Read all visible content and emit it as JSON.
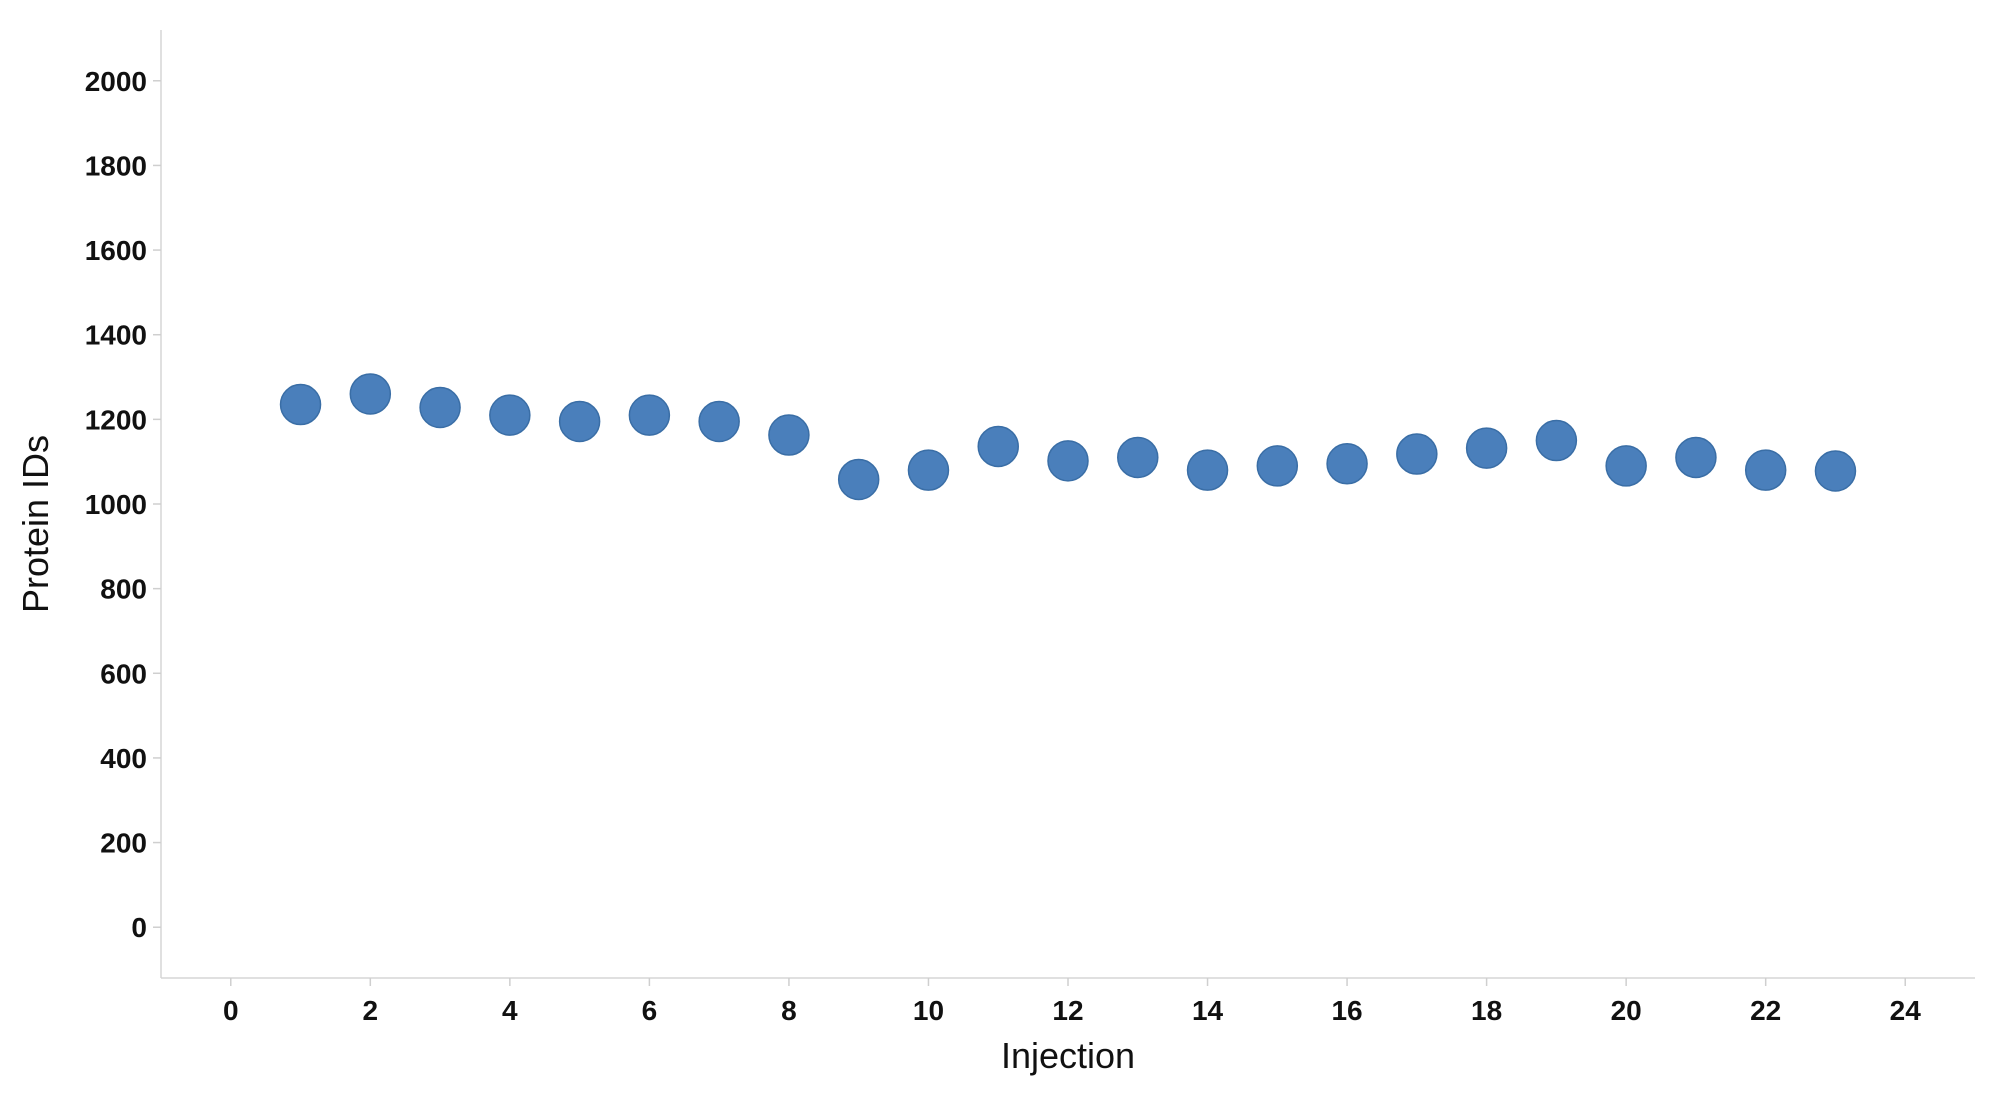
{
  "chart_data": {
    "type": "scatter",
    "xlabel": "Injection",
    "ylabel": "Protein IDs",
    "xlim": [
      -1,
      25
    ],
    "ylim": [
      -120,
      2120
    ],
    "xticks": [
      0,
      2,
      4,
      6,
      8,
      10,
      12,
      14,
      16,
      18,
      20,
      22,
      24
    ],
    "yticks": [
      0,
      200,
      400,
      600,
      800,
      1000,
      1200,
      1400,
      1600,
      1800,
      2000
    ],
    "grid": false,
    "legend": "none",
    "marker_color": "#4a7fbb",
    "series": [
      {
        "x": [
          1,
          2,
          3,
          4,
          5,
          6,
          7,
          8,
          9,
          10,
          11,
          12,
          13,
          14,
          15,
          16,
          17,
          18,
          19,
          20,
          21,
          22,
          23
        ],
        "y": [
          1235,
          1260,
          1228,
          1210,
          1195,
          1210,
          1195,
          1163,
          1058,
          1080,
          1136,
          1102,
          1110,
          1080,
          1090,
          1095,
          1118,
          1132,
          1150,
          1090,
          1110,
          1080,
          1078
        ]
      }
    ]
  }
}
